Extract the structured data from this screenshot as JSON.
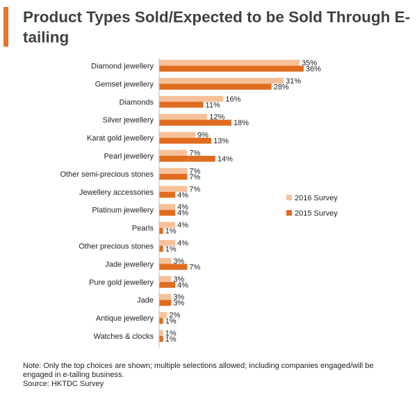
{
  "title": "Product Types Sold/Expected to be Sold Through E-tailing",
  "colors": {
    "accent": "#e8742a",
    "series_2016": "#f6c19a",
    "series_2015": "#e06c1f"
  },
  "note": "Note: Only the top choices are shown; multiple selections allowed; including companies engaged/will be engaged in e-tailing business.",
  "source": "Source: HKTDC Survey",
  "chart_data": {
    "type": "bar",
    "orientation": "horizontal",
    "title": "Product Types Sold/Expected to be Sold Through E-tailing",
    "xlabel": "",
    "ylabel": "",
    "value_suffix": "%",
    "xlim": [
      0,
      40
    ],
    "grid": false,
    "legend_position": "right",
    "categories": [
      "Diamond jewellery",
      "Gemset jewellery",
      "Diamonds",
      "Silver jewellery",
      "Karat gold jewellery",
      "Pearl jewellery",
      "Other semi-precious stones",
      "Jewellery accessories",
      "Platinum jewellery",
      "Pearls",
      "Other precious stones",
      "Jade jewellery",
      "Pure gold jewellery",
      "Jade",
      "Antique jewellery",
      "Watches & clocks"
    ],
    "series": [
      {
        "name": "2016 Survey",
        "values": [
          35,
          31,
          16,
          12,
          9,
          7,
          7,
          7,
          4,
          4,
          4,
          3,
          3,
          3,
          2,
          1
        ]
      },
      {
        "name": "2015 Survey",
        "values": [
          36,
          28,
          11,
          18,
          13,
          14,
          7,
          4,
          4,
          1,
          1,
          7,
          4,
          3,
          1,
          1
        ]
      }
    ]
  }
}
